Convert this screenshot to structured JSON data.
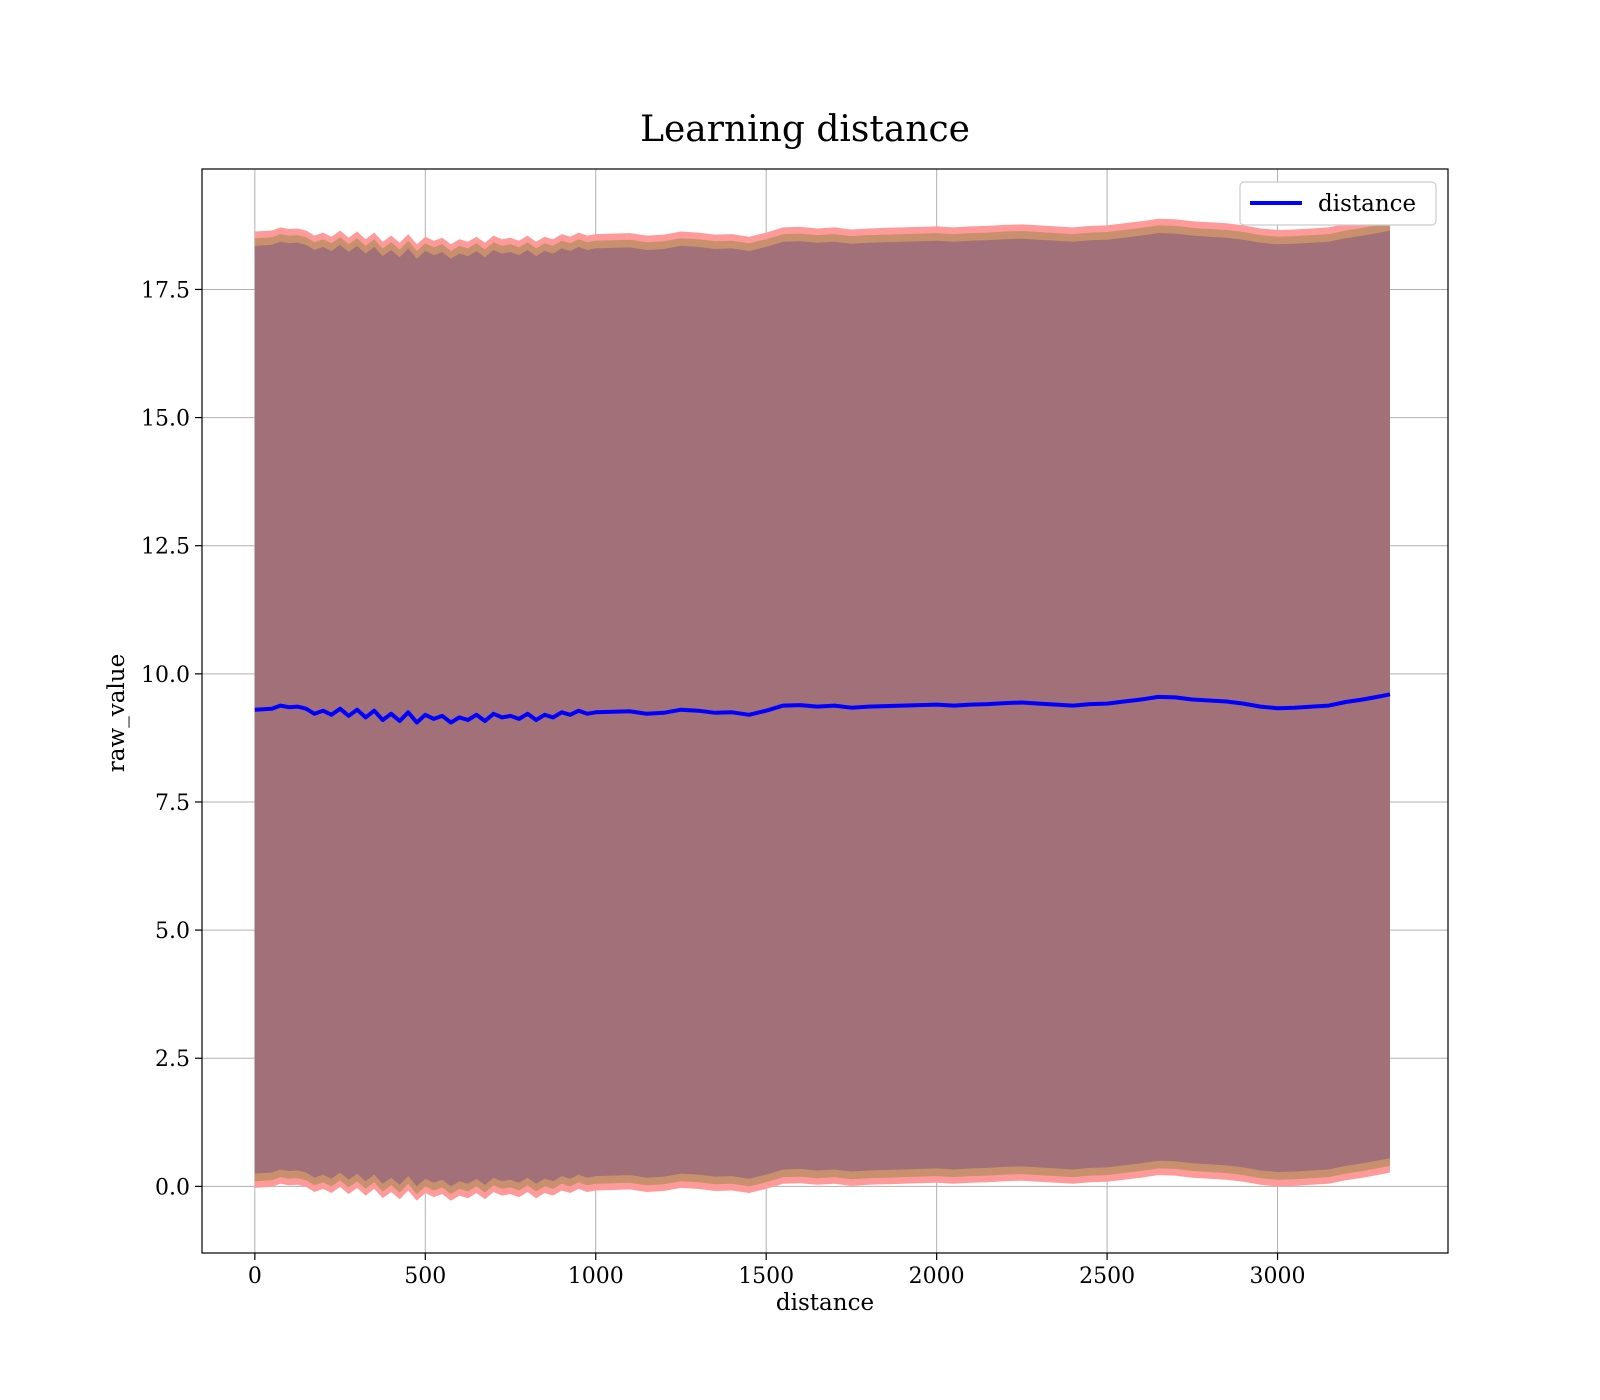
{
  "chart_data": {
    "type": "line",
    "title": "Learning distance",
    "xlabel": "distance",
    "ylabel": "raw_value",
    "xlim": [
      -155,
      3500
    ],
    "ylim": [
      -1.3,
      19.85
    ],
    "xticks": [
      0,
      500,
      1000,
      1500,
      2000,
      2500,
      3000
    ],
    "xtick_labels": [
      "0",
      "500",
      "1000",
      "1500",
      "2000",
      "2500",
      "3000"
    ],
    "yticks": [
      0.0,
      2.5,
      5.0,
      7.5,
      10.0,
      12.5,
      15.0,
      17.5
    ],
    "ytick_labels": [
      "0.0",
      "2.5",
      "5.0",
      "7.5",
      "10.0",
      "12.5",
      "15.0",
      "17.5"
    ],
    "grid": true,
    "legend_position": "top-right",
    "colors": {
      "line": "#0000ff",
      "band_outer": "#ff9a9a",
      "band_mid": "#c9906d",
      "band_inner": "#a17079",
      "grid": "#b0b0b0"
    },
    "series": [
      {
        "name": "distance",
        "x": [
          0,
          50,
          75,
          100,
          125,
          150,
          175,
          200,
          225,
          250,
          275,
          300,
          325,
          350,
          375,
          400,
          425,
          450,
          475,
          500,
          525,
          550,
          575,
          600,
          625,
          650,
          675,
          700,
          725,
          750,
          775,
          800,
          825,
          850,
          875,
          900,
          925,
          950,
          975,
          1000,
          1050,
          1100,
          1150,
          1200,
          1250,
          1300,
          1350,
          1400,
          1450,
          1500,
          1550,
          1600,
          1650,
          1700,
          1750,
          1800,
          1850,
          1900,
          1950,
          2000,
          2050,
          2100,
          2150,
          2200,
          2250,
          2300,
          2350,
          2400,
          2450,
          2500,
          2550,
          2600,
          2650,
          2700,
          2750,
          2800,
          2850,
          2900,
          2950,
          3000,
          3050,
          3100,
          3150,
          3200,
          3250,
          3300,
          3330
        ],
        "y": [
          9.3,
          9.32,
          9.38,
          9.35,
          9.36,
          9.32,
          9.22,
          9.28,
          9.2,
          9.32,
          9.18,
          9.3,
          9.15,
          9.28,
          9.1,
          9.22,
          9.08,
          9.25,
          9.05,
          9.2,
          9.12,
          9.18,
          9.05,
          9.15,
          9.1,
          9.2,
          9.08,
          9.22,
          9.15,
          9.18,
          9.12,
          9.22,
          9.1,
          9.2,
          9.15,
          9.25,
          9.2,
          9.28,
          9.22,
          9.25,
          9.26,
          9.27,
          9.22,
          9.24,
          9.3,
          9.28,
          9.24,
          9.25,
          9.2,
          9.28,
          9.38,
          9.39,
          9.36,
          9.38,
          9.34,
          9.36,
          9.37,
          9.38,
          9.39,
          9.4,
          9.38,
          9.4,
          9.41,
          9.43,
          9.44,
          9.42,
          9.4,
          9.38,
          9.41,
          9.42,
          9.46,
          9.5,
          9.55,
          9.54,
          9.5,
          9.48,
          9.46,
          9.42,
          9.36,
          9.33,
          9.34,
          9.36,
          9.38,
          9.45,
          9.5,
          9.56,
          9.6
        ]
      }
    ],
    "band_halfwidths": {
      "outer": 9.33,
      "mid": 9.2,
      "inner": 9.05
    },
    "legend": {
      "entries": [
        "distance"
      ]
    }
  }
}
